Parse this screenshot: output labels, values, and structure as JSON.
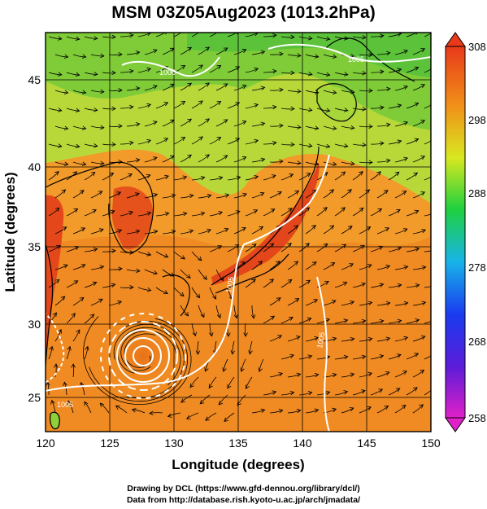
{
  "title": "MSM 03Z05Aug2023 (1013.2hPa)",
  "x_axis": {
    "label": "Longitude (degrees)",
    "ticks": [
      120,
      125,
      130,
      135,
      140,
      145,
      150
    ],
    "range": [
      120,
      150
    ]
  },
  "y_axis": {
    "label": "Latitude  (degrees)",
    "ticks": [
      25,
      30,
      35,
      40,
      45
    ],
    "range": [
      22.4,
      47.6
    ]
  },
  "colorbar": {
    "ticks": [
      258,
      268,
      278,
      288,
      298,
      308
    ],
    "range": [
      258,
      308
    ]
  },
  "isobar_labels": [
    "1005",
    "1005",
    "1000",
    "1005",
    "1005"
  ],
  "credits": [
    "Drawing by DCL (https://www.gfd-dennou.org/library/dcl/)",
    "Data from http://database.rish.kyoto-u.ac.jp/arch/jmadata/"
  ],
  "colors": {
    "land_coast": "#000000",
    "isobar": "#ffffff",
    "warm": "#f4841c",
    "hot": "#e8401a",
    "cool": "#9ad43a"
  }
}
